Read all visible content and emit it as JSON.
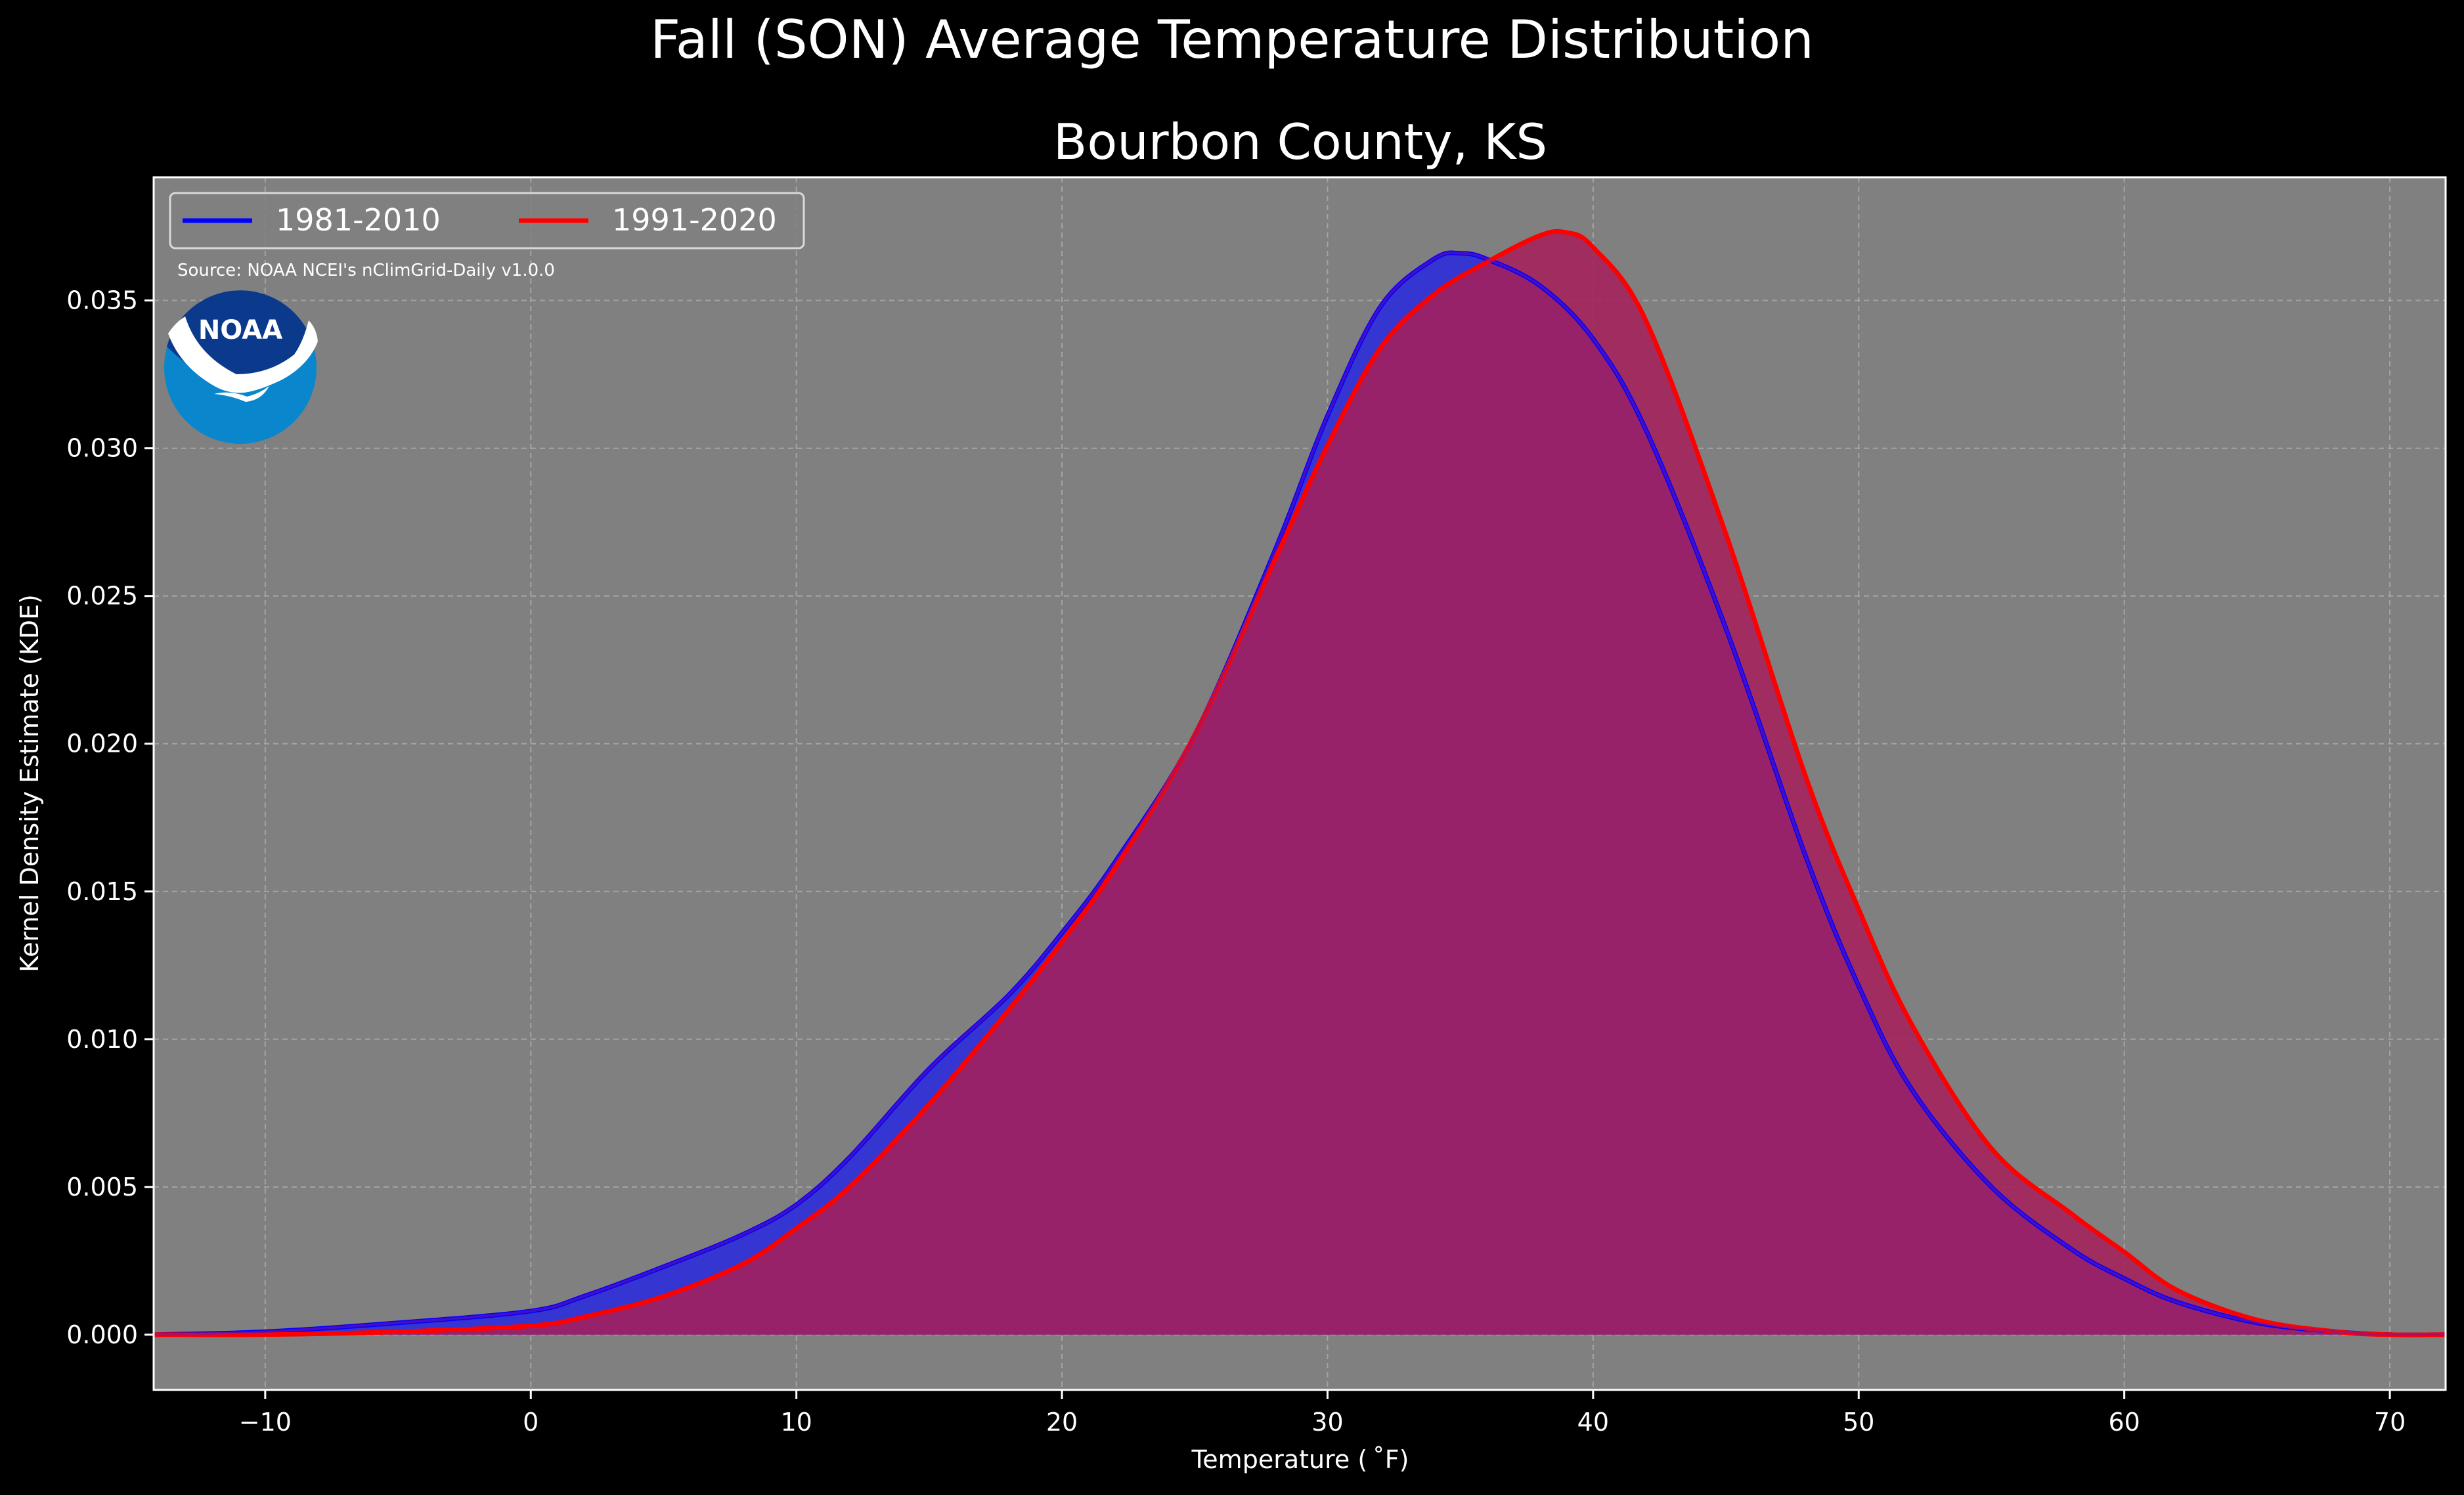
{
  "chart_data": {
    "type": "area",
    "suptitle": "Fall (SON) Average Temperature Distribution",
    "title": "Bourbon County, KS",
    "xlabel": "Temperature ($^\\circ$F)",
    "xlabel_display": "Temperature ( ˚F)",
    "ylabel": "Kernel Density Estimate (KDE)",
    "xlim": [
      -14.2,
      72.1
    ],
    "ylim": [
      -0.00187,
      0.03917
    ],
    "xticks": [
      -10,
      0,
      10,
      20,
      30,
      40,
      50,
      60,
      70
    ],
    "xtick_labels": [
      "−10",
      "0",
      "10",
      "20",
      "30",
      "40",
      "50",
      "60",
      "70"
    ],
    "yticks": [
      0,
      0.005,
      0.01,
      0.015,
      0.02,
      0.025,
      0.03,
      0.035
    ],
    "ytick_labels": [
      "0.000",
      "0.005",
      "0.010",
      "0.015",
      "0.020",
      "0.025",
      "0.030",
      "0.035"
    ],
    "grid": true,
    "legend_position": "upper-left",
    "source_note": "Source: NOAA NCEI's nClimGrid-Daily v1.0.0",
    "logo_text": "NOAA",
    "colors": {
      "background": "#000000",
      "axes_face": "#808080",
      "text": "#ffffff",
      "grid": "#b4b4b4"
    },
    "series": [
      {
        "name": "1981-2010",
        "color": "#0000ff",
        "fill": "#2f2fd8",
        "x": [
          -14.2,
          -10,
          -5,
          0,
          2,
          5,
          8,
          10,
          12,
          15,
          18,
          20,
          22,
          25,
          28,
          30,
          32,
          34,
          35,
          36,
          38,
          40,
          42,
          45,
          48,
          50,
          52,
          55,
          58,
          60,
          62,
          65,
          68,
          70,
          72.1
        ],
        "y": [
          0,
          0.0001,
          0.0004,
          0.0008,
          0.0013,
          0.0023,
          0.0034,
          0.0044,
          0.006,
          0.009,
          0.0115,
          0.0136,
          0.016,
          0.0203,
          0.0265,
          0.0311,
          0.0348,
          0.0364,
          0.0366,
          0.0364,
          0.0355,
          0.0337,
          0.0306,
          0.0239,
          0.0162,
          0.0118,
          0.0083,
          0.005,
          0.0029,
          0.0019,
          0.0011,
          0.0004,
          0.0001,
          0,
          0
        ]
      },
      {
        "name": "1991-2020",
        "color": "#ff0000",
        "fill": "#a5205a",
        "x": [
          -14.2,
          -10,
          -5,
          0,
          2,
          5,
          8,
          10,
          12,
          15,
          18,
          20,
          22,
          25,
          28,
          30,
          32,
          34,
          36,
          38,
          39,
          40,
          42,
          45,
          48,
          50,
          52,
          55,
          58,
          60,
          62,
          65,
          68,
          70,
          72.1
        ],
        "y": [
          0,
          0,
          0.0001,
          0.0003,
          0.0006,
          0.0013,
          0.0024,
          0.0036,
          0.005,
          0.0078,
          0.011,
          0.0133,
          0.0158,
          0.0203,
          0.0262,
          0.0301,
          0.0334,
          0.0352,
          0.0363,
          0.0372,
          0.0373,
          0.0368,
          0.0343,
          0.0271,
          0.0189,
          0.0144,
          0.0105,
          0.0063,
          0.0041,
          0.0028,
          0.0015,
          0.0005,
          0.0001,
          0,
          0
        ]
      }
    ]
  }
}
